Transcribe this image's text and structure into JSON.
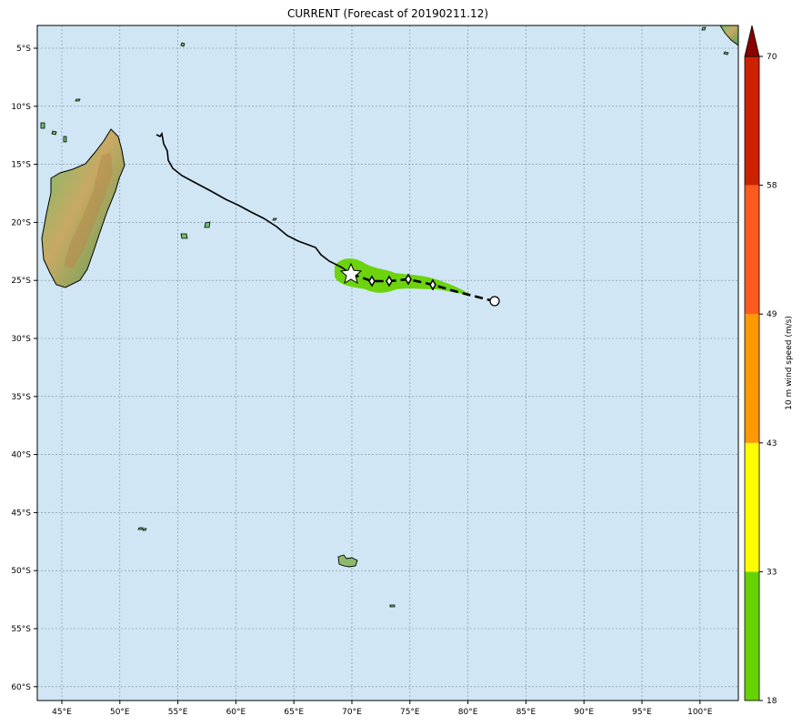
{
  "title": "CURRENT (Forecast of 20190211.12)",
  "colors": {
    "ocean": "#d0e6f4",
    "grid": "#7a8a96",
    "track": "#000000",
    "cone": "#66d200",
    "land_low": "#5fae5a",
    "land_mid": "#c9a65e",
    "land_high": "#a7783f"
  },
  "axes": {
    "lon_labels": [
      "45°E",
      "50°E",
      "55°E",
      "60°E",
      "65°E",
      "70°E",
      "75°E",
      "80°E",
      "85°E",
      "90°E",
      "95°E",
      "100°E"
    ],
    "lat_labels": [
      "5°S",
      "10°S",
      "15°S",
      "20°S",
      "25°S",
      "30°S",
      "35°S",
      "40°S",
      "45°S",
      "50°S",
      "55°S",
      "60°S"
    ]
  },
  "colorbar": {
    "label": "10 m wind speed (m/s)",
    "ticks": [
      "18",
      "33",
      "43",
      "49",
      "58",
      "70"
    ],
    "colors": [
      "#66d200",
      "#ffff00",
      "#ff9900",
      "#ff5a1f",
      "#cc2200",
      "#8b0000"
    ]
  },
  "markers": {
    "current_position_icon": "star-icon",
    "forecast_point_icon": "diamond-icon",
    "end_point_icon": "circle-icon"
  }
}
